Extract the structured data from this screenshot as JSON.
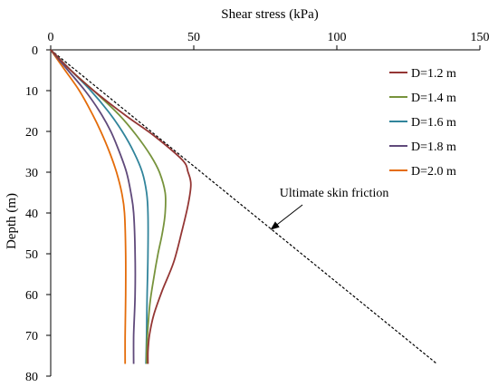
{
  "chart_data": {
    "type": "line",
    "title": "",
    "xlabel": "Shear stress (kPa)",
    "ylabel": "Depth (m)",
    "xlim": [
      0,
      150
    ],
    "ylim": [
      80,
      0
    ],
    "x_axis_position": "top",
    "y_inverted": true,
    "x_ticks": [
      "0",
      "50",
      "100",
      "150"
    ],
    "y_ticks": [
      "0",
      "10",
      "20",
      "30",
      "40",
      "50",
      "60",
      "70",
      "80"
    ],
    "grid": false,
    "legend_position": "top-right",
    "series": [
      {
        "name": "D=1.2 m",
        "color": "#943634",
        "style": "solid",
        "points": [
          [
            0,
            0
          ],
          [
            7,
            5
          ],
          [
            15,
            10
          ],
          [
            26,
            16
          ],
          [
            36,
            21
          ],
          [
            46,
            27
          ],
          [
            48,
            30
          ],
          [
            49,
            33
          ],
          [
            48,
            38
          ],
          [
            46,
            44
          ],
          [
            43,
            52
          ],
          [
            39,
            59
          ],
          [
            36,
            65
          ],
          [
            34.5,
            70
          ],
          [
            34,
            74
          ],
          [
            34,
            77
          ]
        ]
      },
      {
        "name": "D=1.4 m",
        "color": "#77933c",
        "style": "solid",
        "points": [
          [
            0,
            0
          ],
          [
            7,
            5
          ],
          [
            15,
            10
          ],
          [
            24,
            16
          ],
          [
            30,
            21
          ],
          [
            35,
            26
          ],
          [
            38,
            30
          ],
          [
            40,
            35
          ],
          [
            40,
            40
          ],
          [
            39,
            45
          ],
          [
            37.5,
            50
          ],
          [
            36,
            56
          ],
          [
            34.7,
            62
          ],
          [
            34,
            68
          ],
          [
            33.5,
            74
          ],
          [
            33.5,
            77
          ]
        ]
      },
      {
        "name": "D=1.6 m",
        "color": "#31849b",
        "style": "solid",
        "points": [
          [
            0,
            0
          ],
          [
            7,
            5
          ],
          [
            14,
            10
          ],
          [
            20,
            15
          ],
          [
            25,
            20
          ],
          [
            29,
            25
          ],
          [
            32,
            30
          ],
          [
            33.5,
            35
          ],
          [
            34,
            40
          ],
          [
            34,
            50
          ],
          [
            33.7,
            60
          ],
          [
            33.5,
            70
          ],
          [
            33.3,
            77
          ]
        ]
      },
      {
        "name": "D=1.8 m",
        "color": "#604a7b",
        "style": "solid",
        "points": [
          [
            0,
            0
          ],
          [
            6,
            5
          ],
          [
            12,
            10
          ],
          [
            17,
            15
          ],
          [
            21,
            20
          ],
          [
            24,
            25
          ],
          [
            26.5,
            30
          ],
          [
            28,
            35
          ],
          [
            29,
            40
          ],
          [
            29.5,
            50
          ],
          [
            29.5,
            60
          ],
          [
            29,
            70
          ],
          [
            29,
            77
          ]
        ]
      },
      {
        "name": "D=2.0 m",
        "color": "#e46c0a",
        "style": "solid",
        "points": [
          [
            0,
            0
          ],
          [
            5,
            5
          ],
          [
            10,
            10
          ],
          [
            14,
            15
          ],
          [
            17.5,
            20
          ],
          [
            20.5,
            25
          ],
          [
            23,
            30
          ],
          [
            24.8,
            35
          ],
          [
            25.8,
            40
          ],
          [
            26.2,
            50
          ],
          [
            26.2,
            60
          ],
          [
            26,
            70
          ],
          [
            26,
            77
          ]
        ]
      }
    ],
    "reference_line": {
      "name": "Ultimate skin friction",
      "color": "#000000",
      "style": "dashed",
      "points": [
        [
          0,
          0
        ],
        [
          135,
          77
        ]
      ]
    },
    "annotation": {
      "text": "Ultimate skin friction",
      "label_at": [
        80,
        36
      ],
      "arrow_from": [
        88,
        38
      ],
      "arrow_to": [
        77,
        44
      ]
    }
  }
}
